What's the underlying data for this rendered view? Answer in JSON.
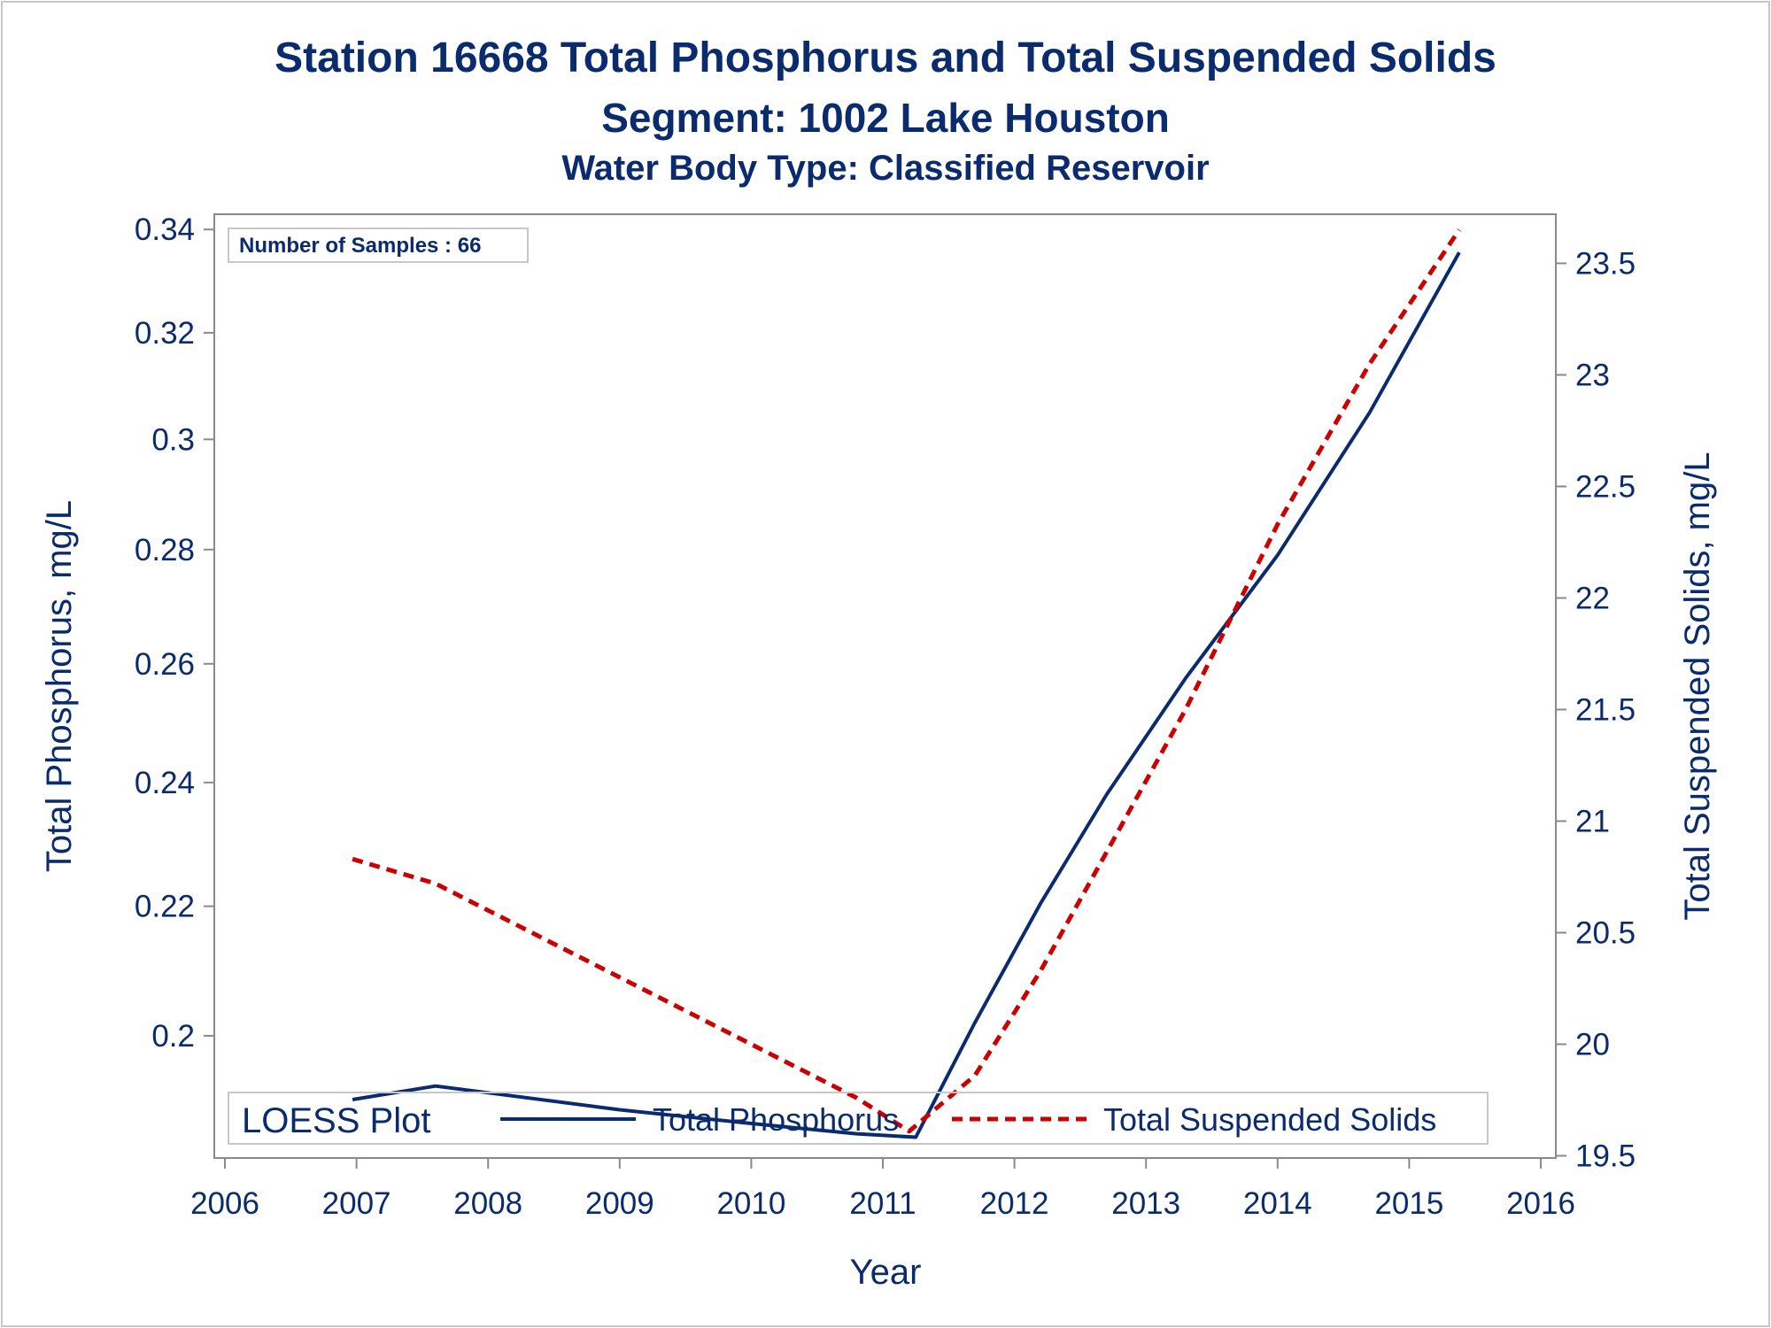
{
  "titles": {
    "line1": "Station 16668  Total Phosphorus and Total Suspended Solids",
    "line2": "Segment: 1002  Lake Houston",
    "line3": "Water Body Type: Classified Reservoir"
  },
  "colors": {
    "text": "#0a2b6e",
    "phosphorus": "#0a2b6e",
    "tss": "#cc0000",
    "axis": "#8a8a8a"
  },
  "chart_data": {
    "type": "line",
    "title": "Station 16668  Total Phosphorus and Total Suspended Solids",
    "xlabel": "Year",
    "ylabel_left": "Total Phosphorus, mg/L",
    "ylabel_right": "Total Suspended Solids, mg/L",
    "xlim": [
      2006,
      2016
    ],
    "ylim_left": [
      0.182,
      0.343
    ],
    "ylim_right": [
      19.49,
      23.72
    ],
    "x_ticks": [
      "2006",
      "2007",
      "2008",
      "2009",
      "2010",
      "2011",
      "2012",
      "2013",
      "2014",
      "2015",
      "2016"
    ],
    "y_ticks_left": [
      "0.2",
      "0.22",
      "0.24",
      "0.26",
      "0.28",
      "0.3",
      "0.32",
      "0.34"
    ],
    "y_ticks_right": [
      "19.5",
      "20",
      "20.5",
      "21",
      "21.5",
      "22",
      "22.5",
      "23",
      "23.5"
    ],
    "y_ticks_left_values": [
      0.2,
      0.22,
      0.24,
      0.26,
      0.28,
      0.3,
      0.32,
      0.34
    ],
    "y_ticks_right_values": [
      19.5,
      20,
      20.5,
      21,
      21.5,
      22,
      22.5,
      23,
      23.5
    ],
    "annotation": "Number of Samples : 66",
    "legend": {
      "title": "LOESS Plot",
      "placement": "bottom-inside",
      "entries": [
        "Total Phosphorus",
        "Total Suspended Solids"
      ]
    },
    "series": [
      {
        "name": "Total Phosphorus",
        "axis": "left",
        "style": "solid",
        "x": [
          2006.97,
          2007.6,
          2008.0,
          2009.0,
          2010.0,
          2010.8,
          2011.25,
          2011.7,
          2012.2,
          2012.7,
          2013.3,
          2014.0,
          2014.7,
          2015.38
        ],
        "y": [
          0.1905,
          0.1925,
          0.1915,
          0.189,
          0.187,
          0.1855,
          0.185,
          0.202,
          0.2205,
          0.238,
          0.2575,
          0.279,
          0.305,
          0.3355
        ]
      },
      {
        "name": "Total Suspended Solids",
        "axis": "right",
        "style": "dashed",
        "x": [
          2006.97,
          2007.6,
          2008.0,
          2009.0,
          2010.0,
          2010.8,
          2011.2,
          2011.7,
          2012.2,
          2012.7,
          2013.3,
          2014.0,
          2014.7,
          2015.38
        ],
        "y": [
          20.83,
          20.72,
          20.6,
          20.3,
          20.0,
          19.76,
          19.61,
          19.86,
          20.33,
          20.86,
          21.5,
          22.33,
          23.05,
          23.65
        ]
      }
    ]
  }
}
